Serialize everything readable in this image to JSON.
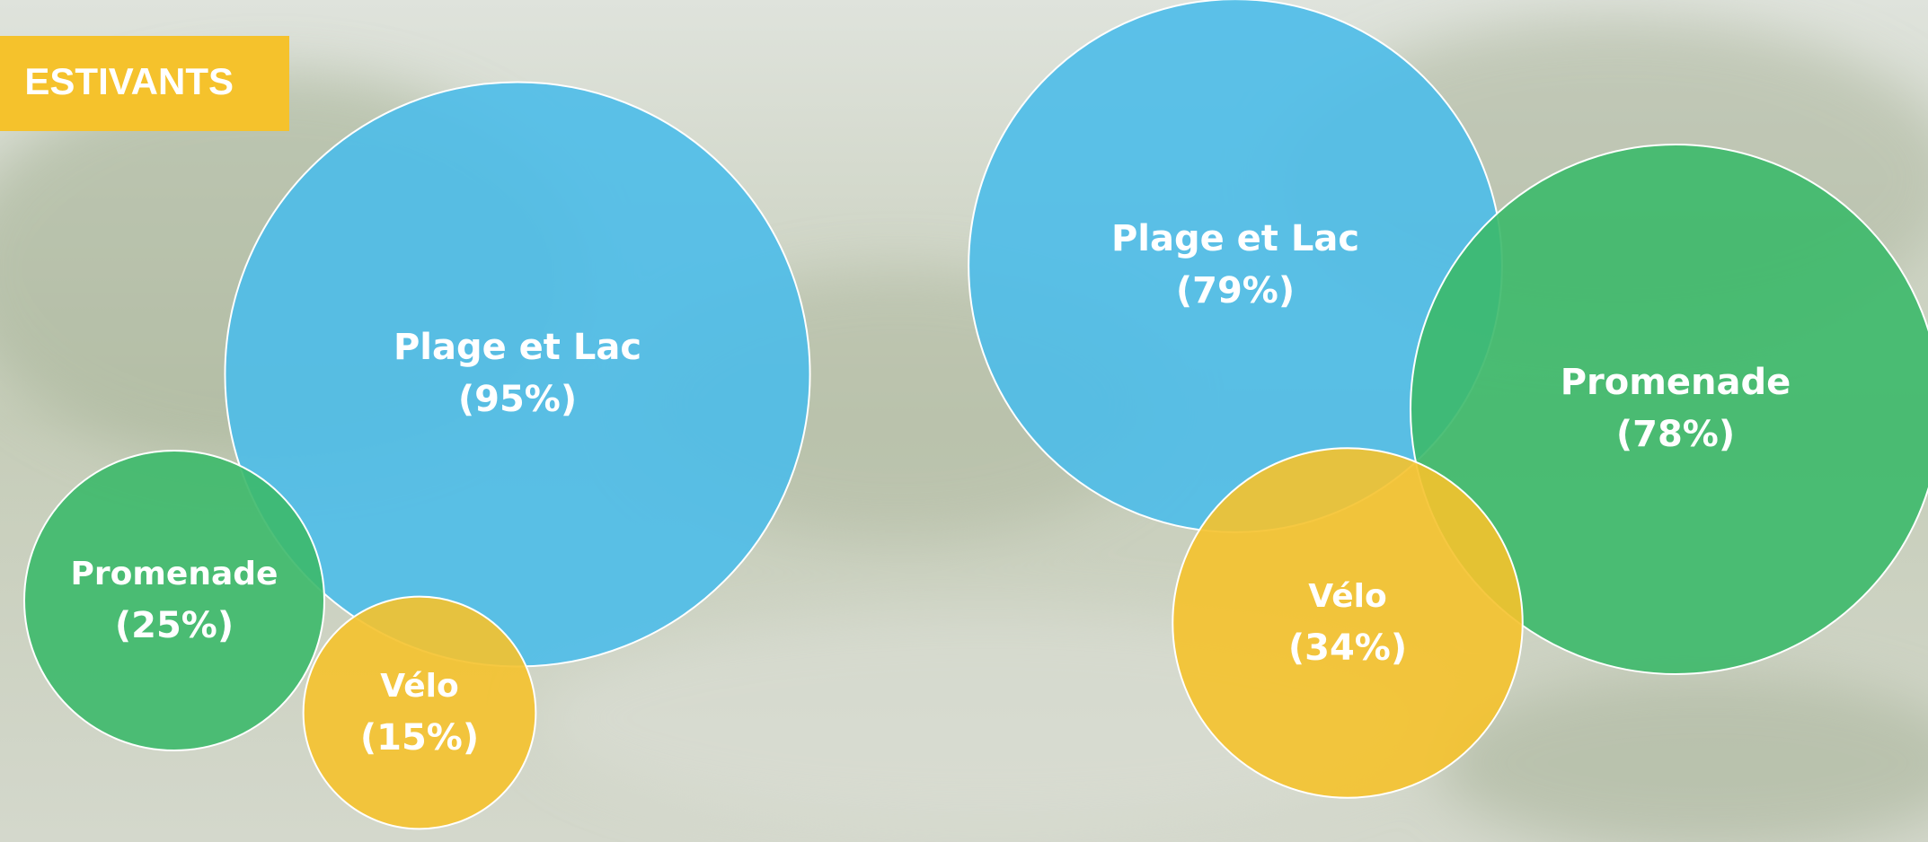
{
  "chart_data": [
    {
      "type": "bubble",
      "title": "ESTIVANTS",
      "categories": [
        "Plage et Lac",
        "Promenade",
        "Vélo"
      ],
      "values": [
        95,
        25,
        15
      ],
      "value_labels": [
        "(95%)",
        "(25%)",
        "(15%)"
      ],
      "colors": [
        "#4dbde9",
        "#3cb96a",
        "#f5c22c"
      ]
    },
    {
      "type": "bubble",
      "categories": [
        "Plage et Lac",
        "Promenade",
        "Vélo"
      ],
      "values": [
        79,
        78,
        34
      ],
      "value_labels": [
        "(79%)",
        "(78%)",
        "(34%)"
      ],
      "colors": [
        "#4dbde9",
        "#3cb96a",
        "#f5c22c"
      ]
    }
  ]
}
